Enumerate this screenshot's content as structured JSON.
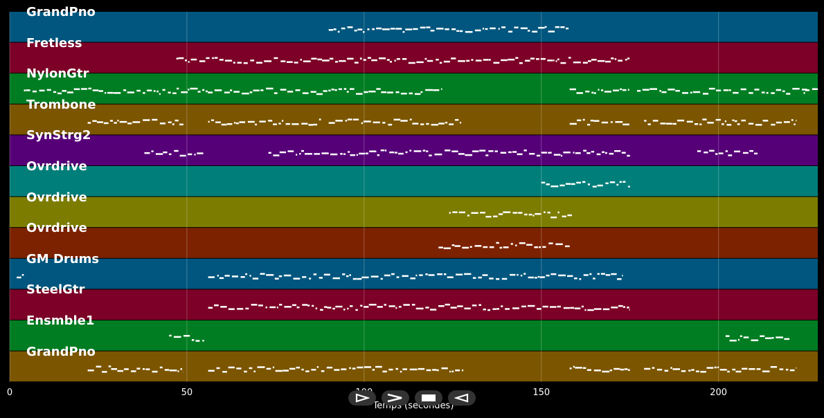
{
  "colors": {
    "background": "#000000",
    "blue": "#00567e",
    "crimson": "#7c0027",
    "green": "#007d22",
    "brown": "#7b5500",
    "purple": "#560078",
    "teal": "#007e7a",
    "olive": "#7c7c00",
    "rust": "#7c2200",
    "notes": "#ffffff"
  },
  "tracks": [
    {
      "name": "GrandPno",
      "color": "#00567e"
    },
    {
      "name": "Fretless",
      "color": "#7c0027"
    },
    {
      "name": "NylonGtr",
      "color": "#007d22"
    },
    {
      "name": "Trombone",
      "color": "#7b5500"
    },
    {
      "name": "SynStrg2",
      "color": "#560078"
    },
    {
      "name": "Ovrdrive",
      "color": "#007e7a"
    },
    {
      "name": "Ovrdrive",
      "color": "#7c7c00"
    },
    {
      "name": "Ovrdrive",
      "color": "#7c2200"
    },
    {
      "name": "GM Drums",
      "color": "#00567e"
    },
    {
      "name": "SteelGtr",
      "color": "#7c0027"
    },
    {
      "name": "Ensmble1",
      "color": "#007d22"
    },
    {
      "name": "GrandPno",
      "color": "#7b5500"
    }
  ],
  "axis": {
    "xlabel": "Temps (secondes)",
    "ticks": [
      "0",
      "50",
      "100",
      "150",
      "200"
    ],
    "tick_values": [
      0,
      50,
      100,
      150,
      200
    ],
    "xlim": [
      0,
      228
    ]
  },
  "controls": [
    {
      "icon": "play-icon"
    },
    {
      "icon": "fast-forward-icon"
    },
    {
      "icon": "stop-icon"
    },
    {
      "icon": "rewind-icon"
    }
  ],
  "note_segments": [
    [
      [
        90,
        158
      ]
    ],
    [
      [
        47,
        175
      ]
    ],
    [
      [
        4,
        122
      ],
      [
        158,
        175
      ],
      [
        177,
        225
      ],
      [
        224,
        228
      ]
    ],
    [
      [
        22,
        49
      ],
      [
        56,
        88
      ],
      [
        90,
        128
      ],
      [
        158,
        175
      ],
      [
        179,
        222
      ]
    ],
    [
      [
        38,
        55
      ],
      [
        73,
        175
      ],
      [
        194,
        211
      ]
    ],
    [
      [
        150,
        175
      ]
    ],
    [
      [
        124,
        159
      ]
    ],
    [
      [
        121,
        158
      ]
    ],
    [
      [
        2,
        4
      ],
      [
        56,
        173
      ]
    ],
    [
      [
        56,
        175
      ]
    ],
    [
      [
        45,
        55
      ],
      [
        202,
        220
      ]
    ],
    [
      [
        22,
        49
      ],
      [
        56,
        128
      ],
      [
        158,
        175
      ],
      [
        179,
        222
      ]
    ]
  ]
}
